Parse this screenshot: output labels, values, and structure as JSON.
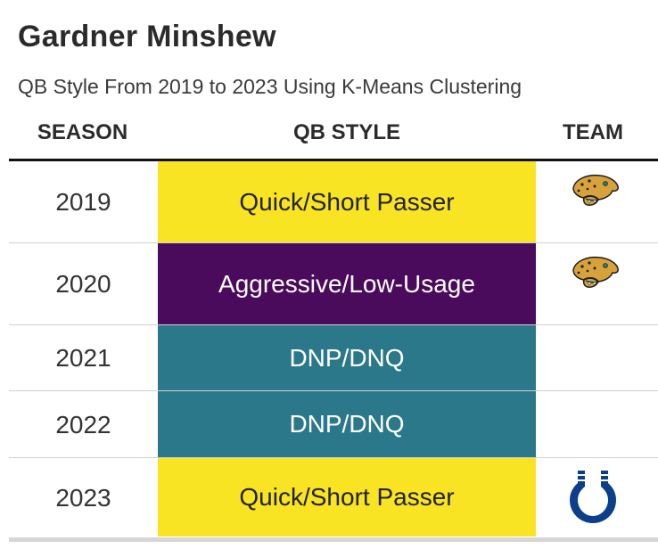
{
  "title": "Gardner Minshew",
  "subtitle": "QB Style From 2019 to 2023 Using K-Means Clustering",
  "headers": {
    "season": "SEASON",
    "style": "QB STYLE",
    "team": "TEAM"
  },
  "colors": {
    "quick_short": "#f9e423",
    "aggressive_low": "#4b0b5c",
    "dnp": "#2a7889"
  },
  "chart_data": {
    "type": "table",
    "title": "Gardner Minshew",
    "subtitle": "QB Style From 2019 to 2023 Using K-Means Clustering",
    "columns": [
      "SEASON",
      "QB STYLE",
      "TEAM"
    ],
    "rows": [
      {
        "season": "2019",
        "qb_style": "Quick/Short Passer",
        "team_icon": "jaguars-logo-icon",
        "fill": "#f9e423",
        "text_color": "#222222"
      },
      {
        "season": "2020",
        "qb_style": "Aggressive/Low-Usage",
        "team_icon": "jaguars-logo-icon",
        "fill": "#4b0b5c",
        "text_color": "#ffffff"
      },
      {
        "season": "2021",
        "qb_style": "DNP/DNQ",
        "team_icon": "",
        "fill": "#2a7889",
        "text_color": "#ffffff"
      },
      {
        "season": "2022",
        "qb_style": "DNP/DNQ",
        "team_icon": "",
        "fill": "#2a7889",
        "text_color": "#ffffff"
      },
      {
        "season": "2023",
        "qb_style": "Quick/Short Passer",
        "team_icon": "colts-logo-icon",
        "fill": "#f9e423",
        "text_color": "#222222"
      }
    ]
  }
}
